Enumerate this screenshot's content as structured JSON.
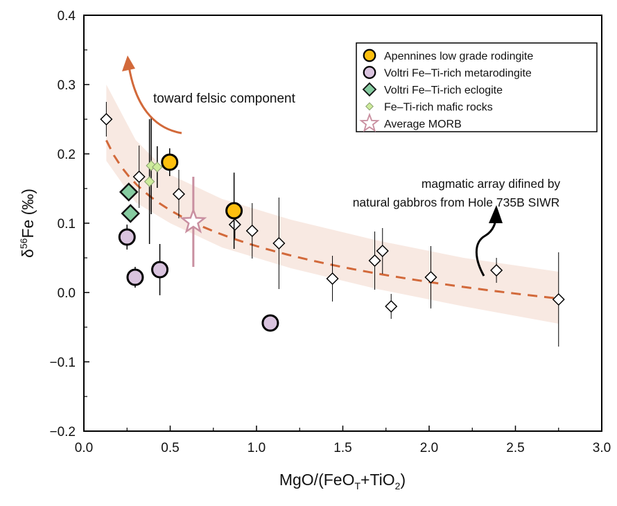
{
  "chart_data": {
    "type": "scatter",
    "title": "",
    "xlabel": "MgO/(FeO",
    "xlabel_sub1": "T",
    "xlabel_mid": "+TiO",
    "xlabel_sub2": "2",
    "xlabel_end": ")",
    "ylabel_prefix": "δ",
    "ylabel_sup": "56",
    "ylabel_main": "Fe (‰)",
    "xlim": [
      0,
      3.0
    ],
    "ylim": [
      -0.2,
      0.4
    ],
    "xticks": [
      "0.0",
      "0.5",
      "1.0",
      "1.5",
      "2.0",
      "2.5",
      "3.0"
    ],
    "yticks": [
      "−0.2",
      "−0.1",
      "0.0",
      "0.1",
      "0.2",
      "0.3",
      "0.4"
    ],
    "legend_position": "top-right",
    "legend": [
      {
        "label": "Apennines low grade rodingite",
        "marker": "circle",
        "color": "#FDBF0F"
      },
      {
        "label": "Voltri Fe–Ti-rich metarodingite",
        "marker": "circle",
        "color": "#D9C3DE"
      },
      {
        "label": "Voltri Fe–Ti-rich eclogite",
        "marker": "diamond",
        "color": "#86CBA0"
      },
      {
        "label": "Fe–Ti-rich mafic rocks",
        "marker": "small-diamond",
        "color": "#CDEB9B"
      },
      {
        "label": "Average MORB",
        "marker": "star",
        "color": "#C98FA0"
      }
    ],
    "series": [
      {
        "name": "Apennines low grade rodingite",
        "points": [
          [
            0.497,
            0.188,
            0.02
          ],
          [
            0.87,
            0.118,
            0.055
          ]
        ]
      },
      {
        "name": "Voltri Fe–Ti-rich metarodingite",
        "points": [
          [
            0.25,
            0.08,
            0.018
          ],
          [
            0.297,
            0.022,
            0.015
          ],
          [
            0.44,
            0.033,
            0.037
          ],
          [
            1.08,
            -0.044,
            0
          ]
        ]
      },
      {
        "name": "Voltri Fe–Ti-rich eclogite",
        "points": [
          [
            0.26,
            0.145,
            0
          ],
          [
            0.27,
            0.114,
            0
          ]
        ]
      },
      {
        "name": "Fe–Ti-rich mafic rocks",
        "points": [
          [
            0.39,
            0.183,
            0.07
          ],
          [
            0.425,
            0.181,
            0.03
          ],
          [
            0.38,
            0.16,
            0.09
          ]
        ]
      },
      {
        "name": "Average MORB",
        "points": [
          [
            0.634,
            0.102,
            0.065
          ]
        ]
      },
      {
        "name": "Hole 735B gabbros",
        "points": [
          [
            0.13,
            0.25,
            0.025
          ],
          [
            0.32,
            0.167,
            0.045
          ],
          [
            0.55,
            0.142,
            0.035
          ],
          [
            0.875,
            0.098,
            0.02
          ],
          [
            0.975,
            0.089,
            0.04
          ],
          [
            1.13,
            0.071,
            0.066
          ],
          [
            1.44,
            0.02,
            0.033
          ],
          [
            1.685,
            0.046,
            0.042
          ],
          [
            1.73,
            0.06,
            0.033
          ],
          [
            1.78,
            -0.02,
            0.018
          ],
          [
            2.01,
            0.022,
            0.045
          ],
          [
            2.39,
            0.032,
            0.018
          ],
          [
            2.75,
            -0.01,
            0.068
          ]
        ]
      }
    ],
    "trend": {
      "a": 0.067,
      "b": -0.0748,
      "x_range": [
        0.13,
        2.75
      ],
      "form": "y = a + b ln(x)",
      "color": "#D2693A"
    },
    "band": {
      "x": [
        0.13,
        0.3,
        0.5,
        0.8,
        1.2,
        1.7,
        2.2,
        2.75
      ],
      "upper": [
        0.3,
        0.22,
        0.17,
        0.135,
        0.105,
        0.075,
        0.05,
        0.03
      ],
      "lower": [
        0.19,
        0.13,
        0.1,
        0.065,
        0.035,
        0.005,
        -0.02,
        -0.045
      ],
      "color": "#F8E9E2"
    },
    "annotations": [
      {
        "text": "toward felsic component"
      },
      {
        "text": "magmatic array difined by"
      },
      {
        "text": "natural gabbros from Hole 735B SIWR"
      }
    ]
  }
}
